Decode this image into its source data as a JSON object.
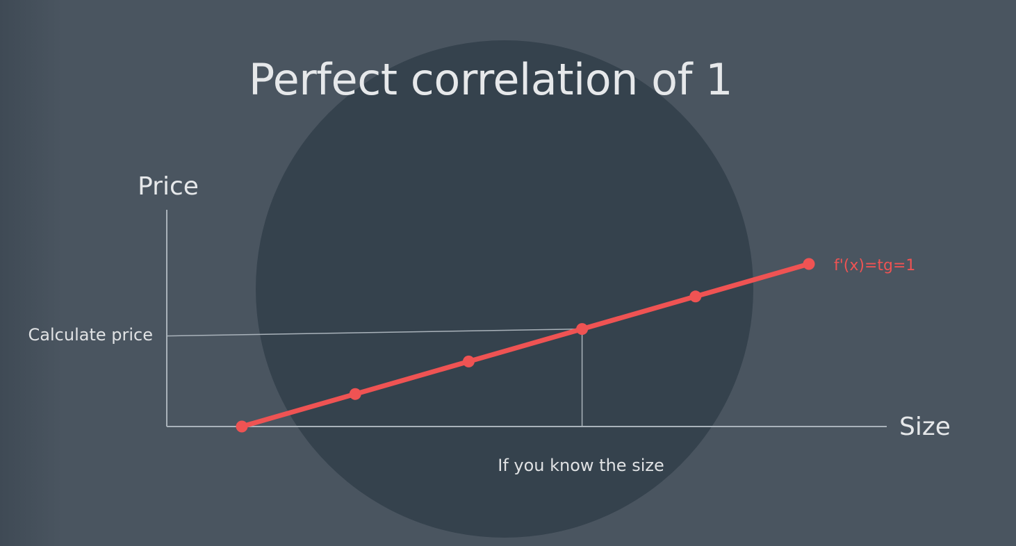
{
  "slide": {
    "title": "Perfect correlation of 1"
  },
  "chart_data": {
    "type": "line",
    "xlabel": "Size",
    "ylabel": "Price",
    "series": [
      {
        "name": "f'(x)=tg=1",
        "x": [
          1,
          2,
          3,
          4,
          5,
          6
        ],
        "y": [
          1,
          2,
          3,
          4,
          5,
          6
        ]
      }
    ],
    "annotations": {
      "y_guide": {
        "label": "Calculate price",
        "value": 4
      },
      "x_guide": {
        "label": "If you know the size",
        "value": 4
      }
    },
    "grid": false,
    "colors": {
      "series": "#ef5353",
      "axes": "#aab3bb",
      "text": "#e6e8ea"
    }
  }
}
